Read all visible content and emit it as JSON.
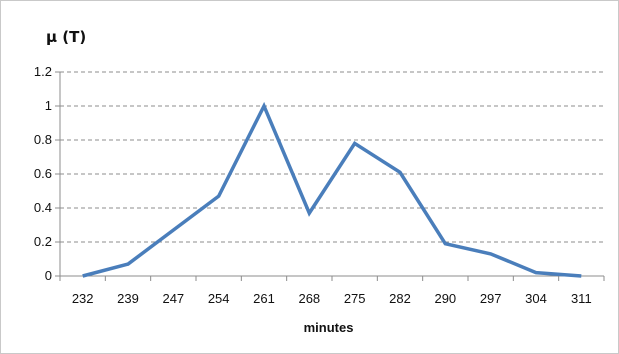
{
  "chart_data": {
    "type": "line",
    "title": "",
    "ylabel": "μ (T)",
    "xlabel": "minutes",
    "ylim": [
      0,
      1.2
    ],
    "yticks": [
      "0",
      "0.2",
      "0.4",
      "0.6",
      "0.8",
      "1",
      "1.2"
    ],
    "categories": [
      "232",
      "239",
      "247",
      "254",
      "261",
      "268",
      "275",
      "282",
      "290",
      "297",
      "304",
      "311"
    ],
    "series": [
      {
        "color": "#4a7ebb",
        "values": [
          0,
          0.07,
          0.27,
          0.47,
          1.0,
          0.37,
          0.78,
          0.61,
          0.19,
          0.13,
          0.02,
          0
        ]
      }
    ],
    "grid": "horizontal dashed",
    "legend": "none"
  }
}
